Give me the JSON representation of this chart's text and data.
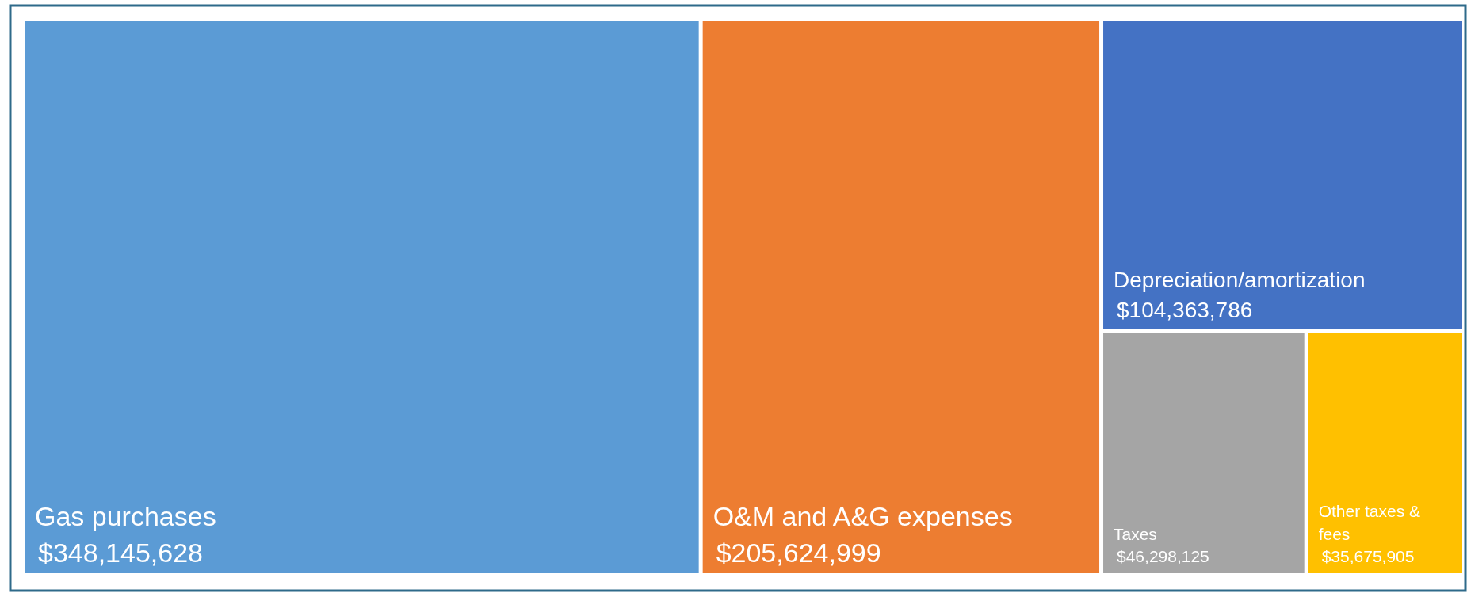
{
  "chart_data": {
    "type": "other",
    "categories": [
      "Gas purchases",
      "O&M and A&G expenses",
      "Depreciation/amortization",
      "Taxes",
      "Other taxes & fees"
    ],
    "values": [
      348145628,
      205624999,
      104363786,
      46298125,
      35675905
    ],
    "value_labels": [
      "$348,145,628",
      "$205,624,999",
      "$104,363,786",
      "$46,298,125",
      "$35,675,905"
    ],
    "colors": [
      "#5b9bd5",
      "#ed7d31",
      "#4472c4",
      "#a5a5a5",
      "#ffc000"
    ]
  }
}
